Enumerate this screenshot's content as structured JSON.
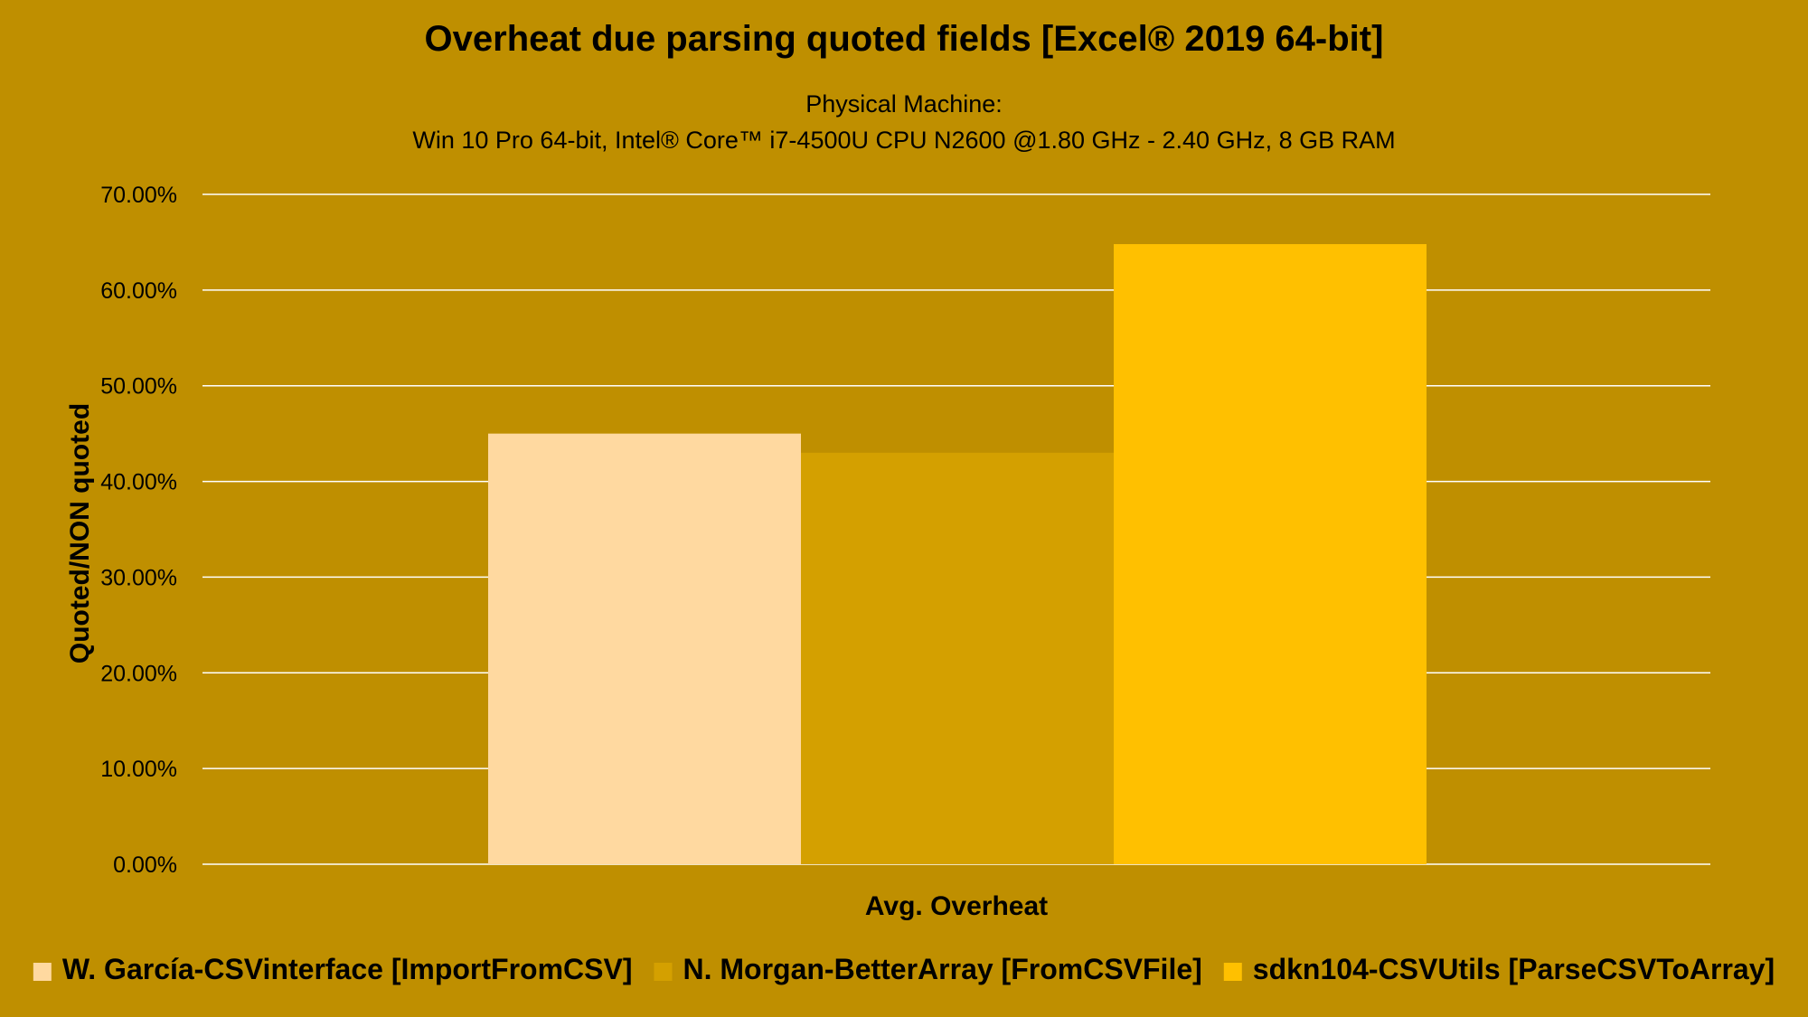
{
  "colors": {
    "background": "#BF8F00",
    "gridline": "#FFFFFF",
    "text": "#000000"
  },
  "chart_data": {
    "type": "bar",
    "title": "Overheat due parsing quoted fields [Excel® 2019 64-bit]",
    "subtitle_lines": [
      "Physical Machine:",
      "Win 10 Pro 64-bit, Intel® Core™ i7-4500U CPU N2600 @1.80 GHz - 2.40 GHz, 8 GB RAM"
    ],
    "xlabel": "Avg. Overheat",
    "ylabel": "Quoted/NON quoted",
    "categories": [
      "Avg. Overheat"
    ],
    "series": [
      {
        "name": "W. García-CSVinterface [ImportFromCSV]",
        "values": [
          45.0
        ],
        "color": "#FFD9A0"
      },
      {
        "name": "N. Morgan-BetterArray [FromCSVFile]",
        "values": [
          43.0
        ],
        "color": "#D4A000"
      },
      {
        "name": "sdkn104-CSVUtils [ParseCSVToArray]",
        "values": [
          64.8
        ],
        "color": "#FFC000"
      }
    ],
    "ylim": [
      0,
      70
    ],
    "yticks": [
      0,
      10,
      20,
      30,
      40,
      50,
      60,
      70
    ],
    "ytick_labels": [
      "0.00%",
      "10.00%",
      "20.00%",
      "30.00%",
      "40.00%",
      "50.00%",
      "60.00%",
      "70.00%"
    ],
    "grid": true,
    "legend_position": "bottom"
  }
}
